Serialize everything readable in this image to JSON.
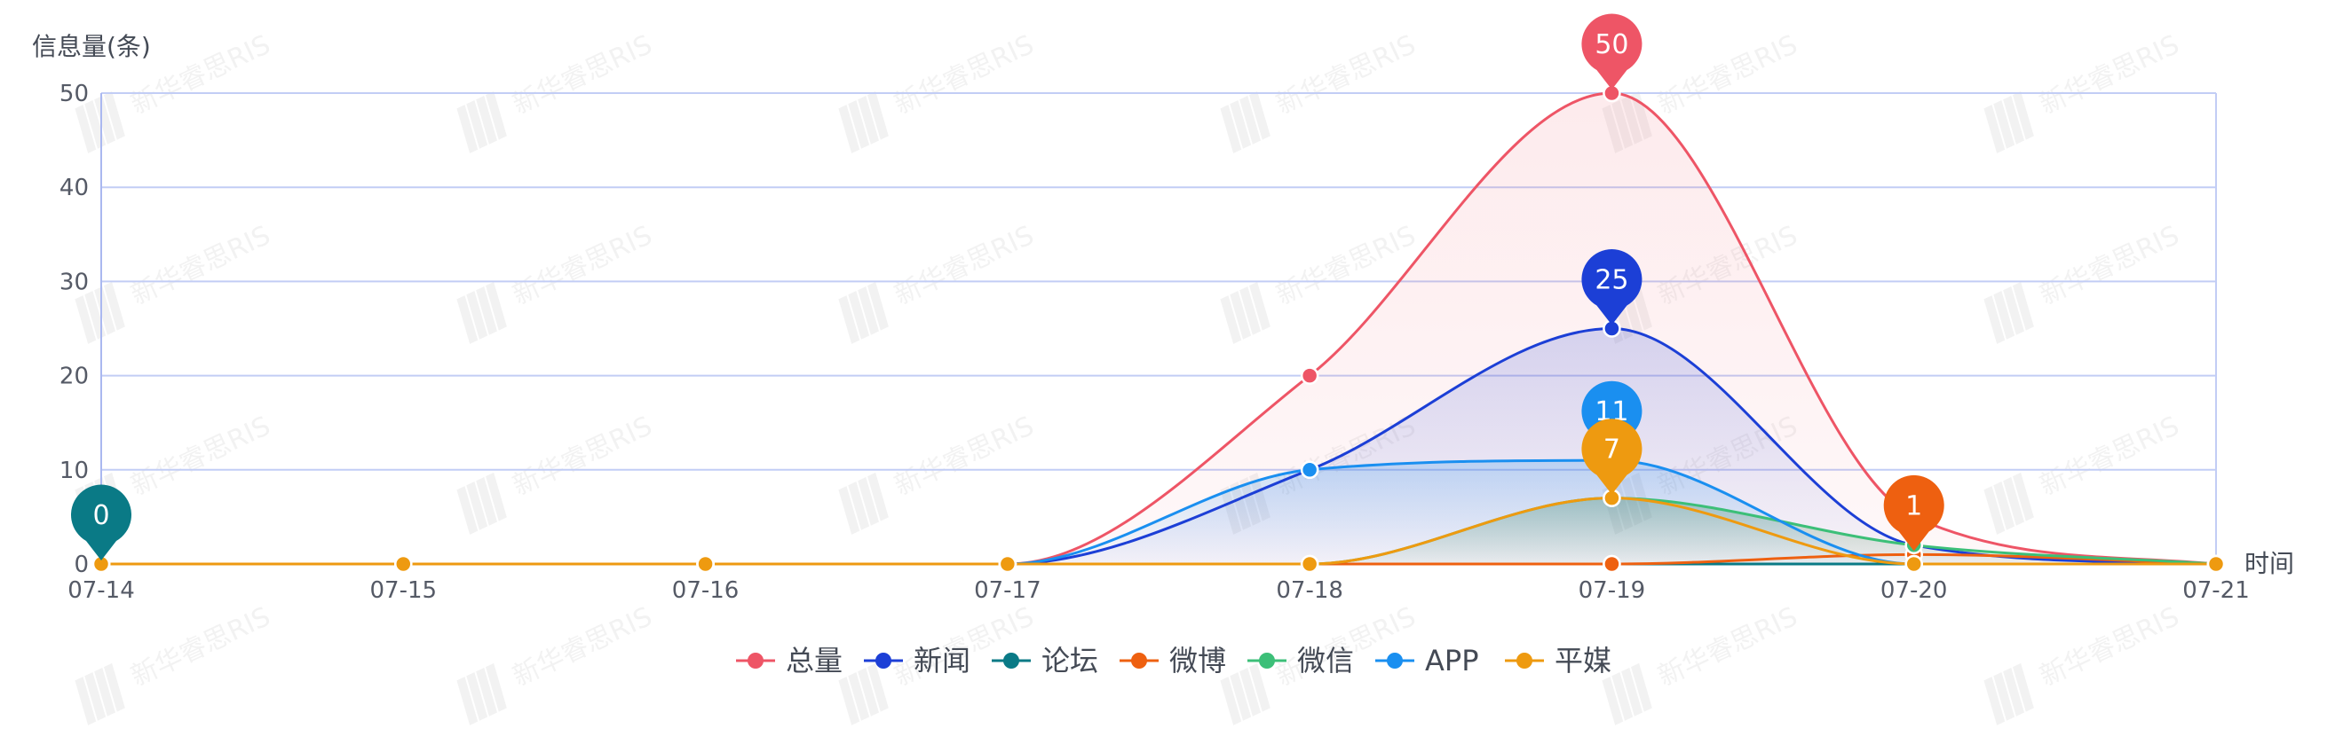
{
  "chart_data": {
    "type": "line",
    "ylabel": "信息量(条)",
    "xlabel": "时间",
    "categories": [
      "07-14",
      "07-15",
      "07-16",
      "07-17",
      "07-18",
      "07-19",
      "07-20",
      "07-21"
    ],
    "ylim": [
      0,
      50
    ],
    "yticks": [
      0,
      10,
      20,
      30,
      40,
      50
    ],
    "grid": true,
    "legend_position": "bottom-center",
    "smooth": true,
    "series": [
      {
        "name": "总量",
        "color": "#ee5566",
        "values": [
          0,
          0,
          0,
          0,
          20,
          50,
          5,
          0
        ],
        "area": true
      },
      {
        "name": "新闻",
        "color": "#1c3fd6",
        "values": [
          0,
          0,
          0,
          0,
          10,
          25,
          2,
          0
        ],
        "area": true
      },
      {
        "name": "论坛",
        "color": "#0a7a86",
        "values": [
          0,
          0,
          0,
          0,
          0,
          0,
          0,
          0
        ],
        "area": false
      },
      {
        "name": "微博",
        "color": "#ee6010",
        "values": [
          0,
          0,
          0,
          0,
          0,
          0,
          1,
          0
        ],
        "area": false
      },
      {
        "name": "微信",
        "color": "#3cbf78",
        "values": [
          0,
          0,
          0,
          0,
          0,
          7,
          2,
          0
        ],
        "area": true
      },
      {
        "name": "APP",
        "color": "#1a8ff0",
        "values": [
          0,
          0,
          0,
          0,
          10,
          11,
          0,
          0
        ],
        "area": true
      },
      {
        "name": "平媒",
        "color": "#ee9a10",
        "values": [
          0,
          0,
          0,
          0,
          0,
          7,
          0,
          0
        ],
        "area": false
      }
    ],
    "annotations": [
      {
        "series": "总量",
        "x": "07-19",
        "value": 50,
        "label": "50"
      },
      {
        "series": "新闻",
        "x": "07-19",
        "value": 25,
        "label": "25"
      },
      {
        "series": "APP",
        "x": "07-19",
        "value": 11,
        "label": "11"
      },
      {
        "series": "平媒",
        "x": "07-19",
        "value": 7,
        "label": "7"
      },
      {
        "series": "微博",
        "x": "07-20",
        "value": 1,
        "label": "1"
      },
      {
        "series": "论坛",
        "x": "07-14",
        "value": 0,
        "label": "0"
      }
    ]
  },
  "watermark": {
    "text": "新华睿思RIS"
  }
}
